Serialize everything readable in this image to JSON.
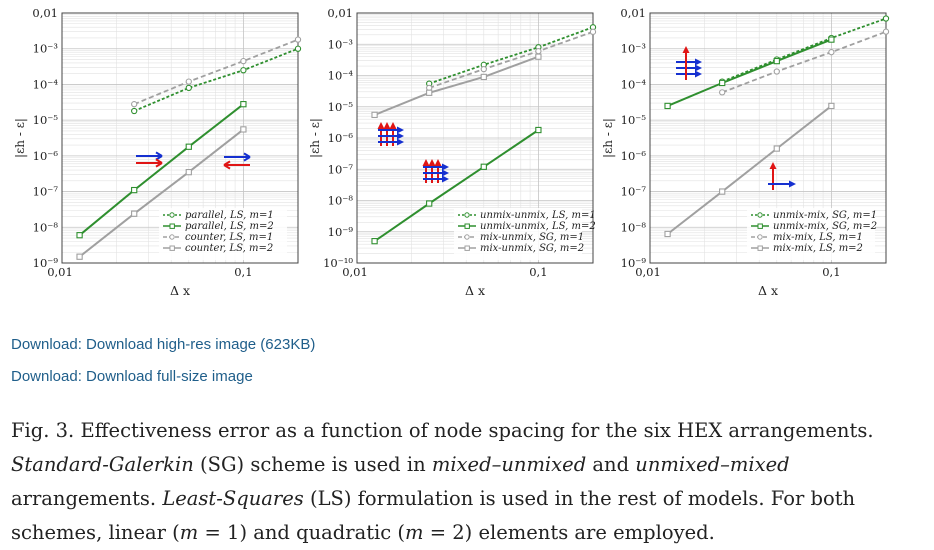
{
  "figure": {
    "y_axis_label": "|εh - ε|",
    "x_axis_label": "Δ x",
    "panels": [
      {
        "id": "a",
        "y_ticks": [
          "0,01",
          "10⁻³",
          "10⁻⁴",
          "10⁻⁵",
          "10⁻⁶",
          "10⁻⁷",
          "10⁻⁸",
          "10⁻⁹"
        ],
        "x_ticks": [
          "0,01",
          "0,1"
        ],
        "legend": [
          "parallel, LS, m=1",
          "parallel, LS, m=2",
          "counter, LS, m=1",
          "counter, LS, m=2"
        ],
        "icon": "parallel-counter-flow-arrows-icon"
      },
      {
        "id": "b",
        "y_ticks": [
          "0,01",
          "10⁻³",
          "10⁻⁴",
          "10⁻⁵",
          "10⁻⁶",
          "10⁻⁷",
          "10⁻⁸",
          "10⁻⁹",
          "10⁻¹⁰"
        ],
        "x_ticks": [
          "0,01",
          "0,1"
        ],
        "legend": [
          "unmix-unmix, LS, m=1",
          "unmix-unmix, LS, m=2",
          "mix-unmix, SG, m=1",
          "mix-unmix, SG, m=2"
        ],
        "icon": "crossflow-grid-arrows-icon"
      },
      {
        "id": "c",
        "y_ticks": [
          "0,01",
          "10⁻³",
          "10⁻⁴",
          "10⁻⁵",
          "10⁻⁶",
          "10⁻⁷",
          "10⁻⁸",
          "10⁻⁹"
        ],
        "x_ticks": [
          "0,01",
          "0,1"
        ],
        "legend": [
          "unmix-mix, SG, m=1",
          "unmix-mix, SG, m=2",
          "mix-mix, LS, m=1",
          "mix-mix, LS, m=2"
        ],
        "icon": "crossflow-arrows-icon"
      }
    ]
  },
  "chart_data": [
    {
      "type": "line",
      "log_x": true,
      "log_y": true,
      "grid": true,
      "legend_position": "bottom-right",
      "xlabel": "Δ x",
      "ylabel": "|εh - ε|",
      "xlim": [
        0.01,
        0.2
      ],
      "ylim": [
        1e-09,
        0.01
      ],
      "series": [
        {
          "name": "parallel, LS, m=1",
          "color": "#2f8f2f",
          "style": "dotted",
          "x": [
            0.025,
            0.05,
            0.1,
            0.2
          ],
          "y": [
            1.8e-05,
            8e-05,
            0.00025,
            0.001
          ]
        },
        {
          "name": "parallel, LS, m=2",
          "color": "#2f8f2f",
          "style": "solid",
          "x": [
            0.0125,
            0.025,
            0.05,
            0.1
          ],
          "y": [
            6e-09,
            1.1e-07,
            1.8e-06,
            2.8e-05
          ]
        },
        {
          "name": "counter, LS, m=1",
          "color": "#a0a0a0",
          "style": "dashed",
          "x": [
            0.025,
            0.05,
            0.1,
            0.2
          ],
          "y": [
            2.8e-05,
            0.00012,
            0.00045,
            0.0018
          ]
        },
        {
          "name": "counter, LS, m=2",
          "color": "#a0a0a0",
          "style": "solid",
          "x": [
            0.0125,
            0.025,
            0.05,
            0.1
          ],
          "y": [
            1.5e-09,
            2.4e-08,
            3.5e-07,
            5.5e-06
          ]
        }
      ]
    },
    {
      "type": "line",
      "log_x": true,
      "log_y": true,
      "grid": true,
      "legend_position": "bottom-right",
      "xlabel": "Δ x",
      "ylabel": "|εh - ε|",
      "xlim": [
        0.01,
        0.2
      ],
      "ylim": [
        1e-10,
        0.01
      ],
      "series": [
        {
          "name": "unmix-unmix, LS, m=1",
          "color": "#2f8f2f",
          "style": "dotted",
          "x": [
            0.025,
            0.05,
            0.1,
            0.2
          ],
          "y": [
            5.5e-05,
            0.00022,
            0.0008,
            0.0035
          ]
        },
        {
          "name": "unmix-unmix, LS, m=2",
          "color": "#2f8f2f",
          "style": "solid",
          "x": [
            0.0125,
            0.025,
            0.05,
            0.1
          ],
          "y": [
            5e-10,
            8e-09,
            1.2e-07,
            1.8e-06
          ]
        },
        {
          "name": "mix-unmix, SG, m=1",
          "color": "#a0a0a0",
          "style": "dashed",
          "x": [
            0.025,
            0.05,
            0.1,
            0.2
          ],
          "y": [
            4e-05,
            0.00016,
            0.0006,
            0.0025
          ]
        },
        {
          "name": "mix-unmix, SG, m=2",
          "color": "#a0a0a0",
          "style": "solid",
          "x": [
            0.0125,
            0.025,
            0.05,
            0.1
          ],
          "y": [
            5.5e-06,
            2.8e-05,
            9e-05,
            0.0004
          ]
        }
      ]
    },
    {
      "type": "line",
      "log_x": true,
      "log_y": true,
      "grid": true,
      "legend_position": "bottom-right",
      "xlabel": "Δ x",
      "ylabel": "|εh - ε|",
      "xlim": [
        0.01,
        0.2
      ],
      "ylim": [
        1e-09,
        0.01
      ],
      "series": [
        {
          "name": "unmix-mix, SG, m=1",
          "color": "#2f8f2f",
          "style": "dotted",
          "x": [
            0.025,
            0.05,
            0.1,
            0.2
          ],
          "y": [
            0.00012,
            0.0005,
            0.002,
            0.007
          ]
        },
        {
          "name": "unmix-mix, SG, m=2",
          "color": "#2f8f2f",
          "style": "solid",
          "x": [
            0.0125,
            0.025,
            0.05,
            0.1
          ],
          "y": [
            2.5e-05,
            0.00011,
            0.00045,
            0.0018
          ]
        },
        {
          "name": "mix-mix, LS, m=1",
          "color": "#a0a0a0",
          "style": "dashed",
          "x": [
            0.025,
            0.05,
            0.1,
            0.2
          ],
          "y": [
            6e-05,
            0.00023,
            0.0008,
            0.003
          ]
        },
        {
          "name": "mix-mix, LS, m=2",
          "color": "#a0a0a0",
          "style": "solid",
          "x": [
            0.0125,
            0.025,
            0.05,
            0.1
          ],
          "y": [
            6.5e-09,
            1e-07,
            1.6e-06,
            2.5e-05
          ]
        }
      ]
    }
  ],
  "links": {
    "high_res": "Download: Download high-res image (623KB)",
    "full_size": "Download: Download full-size image"
  },
  "caption": {
    "p1": "Fig. 3. Effectiveness error as a function of node spacing for the six HEX arrangements. ",
    "sg_term": "Standard-Galerkin",
    "p2": " (SG) scheme is used in ",
    "mu": "mixed–unmixed",
    "p3": " and ",
    "um": "unmixed–mixed",
    "p4": " arrangements. ",
    "ls_term": "Least-Squares",
    "p5": " (LS) formulation is used in the rest of models. For both schemes, linear (",
    "m1": "m",
    "p6": " = 1) and quadratic (",
    "m2": "m",
    "p7": " = 2) elements are employed."
  }
}
